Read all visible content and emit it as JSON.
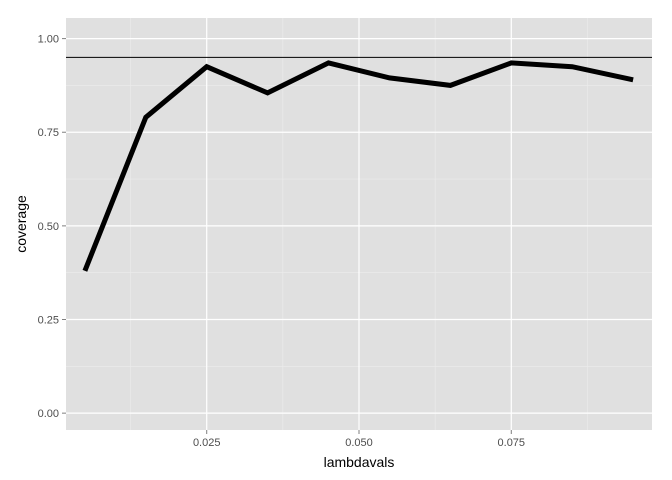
{
  "chart_data": {
    "type": "line",
    "xlabel": "lambdavals",
    "ylabel": "coverage",
    "xlim": [
      0.0019,
      0.0981
    ],
    "ylim": [
      -0.045,
      1.055
    ],
    "x_ticks": [
      0.025,
      0.05,
      0.075
    ],
    "x_tick_labels": [
      "0.025",
      "0.050",
      "0.075"
    ],
    "x_minor_ticks": [
      0.0125,
      0.0375,
      0.0625,
      0.0875
    ],
    "y_ticks": [
      0.0,
      0.25,
      0.5,
      0.75,
      1.0
    ],
    "y_tick_labels": [
      "0.00",
      "0.25",
      "0.50",
      "0.75",
      "1.00"
    ],
    "y_minor_ticks": [
      0.125,
      0.375,
      0.625,
      0.875
    ],
    "grid": true,
    "series": [
      {
        "x": [
          0.005,
          0.015,
          0.025,
          0.035,
          0.045,
          0.055,
          0.065,
          0.075,
          0.085,
          0.095
        ],
        "values": [
          0.38,
          0.79,
          0.925,
          0.855,
          0.935,
          0.895,
          0.875,
          0.935,
          0.925,
          0.89
        ]
      }
    ],
    "hlines": [
      0.95
    ],
    "colors": {
      "panel": "#e0e0e0",
      "grid_major": "#ffffff",
      "grid_minor": "#ececec",
      "line": "#000000"
    }
  }
}
